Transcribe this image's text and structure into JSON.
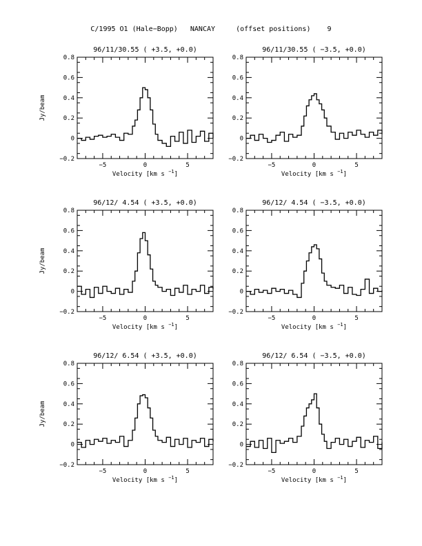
{
  "page": {
    "title": "C/1995 O1 (Hale−Bopp)   NANCAY     (offset positions)    9"
  },
  "axes_common": {
    "xlabel": "Velocity [km s",
    "xlabel_exp": "−1",
    "xlabel_close": "]",
    "ylabel": "Jy/beam",
    "xlim": [
      -8,
      8
    ],
    "ylim": [
      -0.2,
      0.8
    ],
    "xticks": [
      -5,
      0,
      5
    ],
    "xtick_labels": [
      "−5",
      "0",
      "5"
    ],
    "yticks": [
      -0.2,
      0,
      0.2,
      0.4,
      0.6,
      0.8
    ],
    "ytick_labels": [
      "−0.2",
      "0",
      "0.2",
      "0.4",
      "0.6",
      "0.8"
    ]
  },
  "chart_data": [
    {
      "type": "line",
      "title": "96/11/30.55  ( +3.5, +0.0)",
      "center": -0.2,
      "width": 0.8,
      "width_right": 0.9,
      "peak": 0.5,
      "x": [
        -8,
        -7.5,
        -7,
        -6.5,
        -6,
        -5.5,
        -5,
        -4.5,
        -4,
        -3.5,
        -3,
        -2.5,
        -2,
        -1.5,
        -1.2,
        -0.9,
        -0.6,
        -0.3,
        0,
        0.3,
        0.6,
        0.9,
        1.2,
        1.5,
        2,
        2.5,
        3,
        3.5,
        4,
        4.5,
        5,
        5.5,
        6,
        6.5,
        7,
        7.5,
        8
      ],
      "y": [
        0.0,
        -0.02,
        0.01,
        -0.01,
        0.02,
        0.03,
        0.01,
        0.02,
        0.04,
        0.01,
        -0.02,
        0.05,
        0.04,
        0.12,
        0.18,
        0.28,
        0.4,
        0.5,
        0.48,
        0.4,
        0.28,
        0.14,
        0.04,
        -0.02,
        -0.05,
        -0.08,
        0.02,
        -0.03,
        0.06,
        -0.05,
        0.08,
        -0.04,
        0.02,
        0.07,
        -0.03,
        0.05,
        0.0
      ]
    },
    {
      "type": "line",
      "title": "96/11/30.55  ( −3.5, +0.0)",
      "center": 0.0,
      "width": 1.2,
      "width_right": 1.3,
      "peak": 0.43,
      "x": [
        -8,
        -7.5,
        -7,
        -6.5,
        -6,
        -5.5,
        -5,
        -4.5,
        -4,
        -3.5,
        -3,
        -2.5,
        -2,
        -1.5,
        -1.2,
        -0.9,
        -0.6,
        -0.3,
        0,
        0.3,
        0.6,
        0.9,
        1.2,
        1.5,
        2,
        2.5,
        3,
        3.5,
        4,
        4.5,
        5,
        5.5,
        6,
        6.5,
        7,
        7.5,
        8
      ],
      "y": [
        0.0,
        0.03,
        -0.02,
        0.04,
        0.0,
        -0.04,
        -0.02,
        0.03,
        0.06,
        -0.03,
        0.04,
        0.01,
        0.03,
        0.12,
        0.22,
        0.32,
        0.38,
        0.42,
        0.44,
        0.38,
        0.34,
        0.28,
        0.2,
        0.12,
        0.06,
        -0.01,
        0.05,
        0.0,
        0.06,
        0.03,
        0.08,
        0.04,
        0.01,
        0.06,
        0.03,
        0.08,
        0.04
      ]
    },
    {
      "type": "line",
      "title": "96/12/ 4.54  ( +3.5, +0.0)",
      "center": -0.4,
      "width": 0.9,
      "width_right": 1.0,
      "peak": 0.58,
      "x": [
        -8,
        -7.5,
        -7,
        -6.5,
        -6,
        -5.5,
        -5,
        -4.5,
        -4,
        -3.5,
        -3,
        -2.5,
        -2,
        -1.5,
        -1.2,
        -0.9,
        -0.6,
        -0.3,
        0,
        0.3,
        0.6,
        0.9,
        1.2,
        1.5,
        2,
        2.5,
        3,
        3.5,
        4,
        4.5,
        5,
        5.5,
        6,
        6.5,
        7,
        7.5,
        8
      ],
      "y": [
        0.05,
        -0.03,
        0.02,
        -0.06,
        0.04,
        -0.02,
        0.05,
        0.0,
        -0.02,
        0.03,
        -0.03,
        0.02,
        -0.01,
        0.1,
        0.2,
        0.38,
        0.52,
        0.58,
        0.5,
        0.36,
        0.22,
        0.1,
        0.06,
        0.04,
        0.0,
        0.02,
        -0.04,
        0.03,
        -0.01,
        0.06,
        -0.03,
        0.02,
        0.0,
        0.06,
        -0.02,
        0.04,
        0.02
      ]
    },
    {
      "type": "line",
      "title": "96/12/ 4.54  ( −3.5, +0.0)",
      "center": 0.0,
      "width": 1.3,
      "width_right": 1.2,
      "peak": 0.46,
      "x": [
        -8,
        -7.5,
        -7,
        -6.5,
        -6,
        -5.5,
        -5,
        -4.5,
        -4,
        -3.5,
        -3,
        -2.5,
        -2,
        -1.5,
        -1.2,
        -0.9,
        -0.6,
        -0.3,
        0,
        0.3,
        0.6,
        0.9,
        1.2,
        1.5,
        2,
        2.5,
        3,
        3.5,
        4,
        4.5,
        5,
        5.5,
        6,
        6.5,
        7,
        7.5,
        8
      ],
      "y": [
        0.0,
        -0.03,
        0.02,
        -0.01,
        0.01,
        -0.02,
        0.03,
        0.0,
        0.02,
        -0.02,
        0.01,
        -0.03,
        -0.06,
        0.08,
        0.2,
        0.3,
        0.38,
        0.44,
        0.46,
        0.42,
        0.32,
        0.18,
        0.1,
        0.06,
        0.04,
        0.03,
        0.06,
        -0.02,
        0.04,
        -0.03,
        -0.04,
        0.02,
        0.12,
        -0.02,
        0.03,
        0.0,
        0.01
      ]
    },
    {
      "type": "line",
      "title": "96/12/ 6.54  ( +3.5, +0.0)",
      "center": -0.4,
      "width": 0.9,
      "width_right": 1.1,
      "peak": 0.49,
      "x": [
        -8,
        -7.5,
        -7,
        -6.5,
        -6,
        -5.5,
        -5,
        -4.5,
        -4,
        -3.5,
        -3,
        -2.5,
        -2,
        -1.5,
        -1.2,
        -0.9,
        -0.6,
        -0.3,
        0,
        0.3,
        0.6,
        0.9,
        1.2,
        1.5,
        2,
        2.5,
        3,
        3.5,
        4,
        4.5,
        5,
        5.5,
        6,
        6.5,
        7,
        7.5,
        8
      ],
      "y": [
        0.02,
        -0.03,
        0.04,
        0.0,
        0.05,
        0.03,
        0.06,
        0.01,
        0.04,
        0.02,
        0.08,
        -0.02,
        0.04,
        0.14,
        0.26,
        0.4,
        0.48,
        0.49,
        0.46,
        0.36,
        0.26,
        0.14,
        0.08,
        0.04,
        0.02,
        0.07,
        -0.02,
        0.05,
        0.0,
        0.06,
        -0.03,
        0.04,
        0.02,
        0.06,
        -0.02,
        0.05,
        0.03
      ]
    },
    {
      "type": "line",
      "title": "96/12/ 6.54  ( −3.5, +0.0)",
      "center": 0.0,
      "width": 1.1,
      "width_right": 0.8,
      "peak": 0.48,
      "x": [
        -8,
        -7.5,
        -7,
        -6.5,
        -6,
        -5.5,
        -5,
        -4.5,
        -4,
        -3.5,
        -3,
        -2.5,
        -2,
        -1.5,
        -1.2,
        -0.9,
        -0.6,
        -0.3,
        0,
        0.3,
        0.6,
        0.9,
        1.2,
        1.5,
        2,
        2.5,
        3,
        3.5,
        4,
        4.5,
        5,
        5.5,
        6,
        6.5,
        7,
        7.5,
        8
      ],
      "y": [
        -0.02,
        0.03,
        -0.03,
        0.04,
        -0.04,
        0.06,
        -0.08,
        0.04,
        0.01,
        0.03,
        0.06,
        0.02,
        0.08,
        0.18,
        0.28,
        0.36,
        0.4,
        0.44,
        0.5,
        0.36,
        0.2,
        0.1,
        0.03,
        -0.04,
        0.02,
        0.06,
        0.0,
        0.05,
        -0.02,
        0.03,
        0.07,
        -0.03,
        0.04,
        0.02,
        0.08,
        -0.04,
        0.02
      ]
    }
  ]
}
